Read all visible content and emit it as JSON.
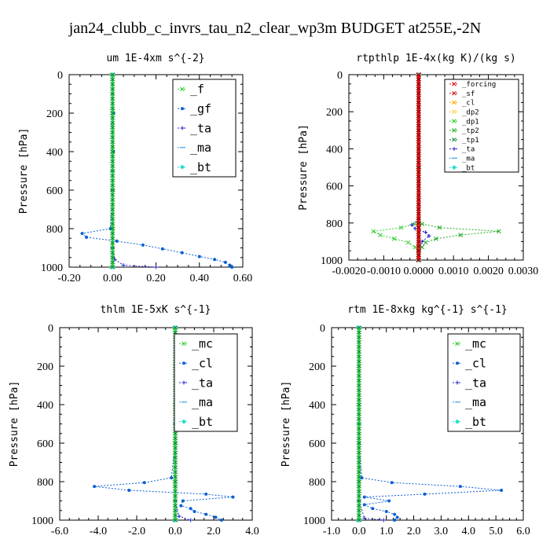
{
  "figure": {
    "title": "jan24_clubb_c_invrs_tau_n2_clear_wp3m  BUDGET at255E,-2N"
  },
  "chart_data": [
    {
      "type": "line",
      "title": "um  1E-4xm s^{-2}",
      "ylabel": "Pressure [hPa]",
      "xlim": [
        -0.2,
        0.6
      ],
      "ylim": [
        1000,
        0
      ],
      "xticks": [
        "-0.20",
        "0.00",
        "0.20",
        "0.40",
        "0.60"
      ],
      "yticks": [
        "0",
        "200",
        "400",
        "600",
        "800",
        "1000"
      ],
      "legend_font": 15,
      "legend": [
        "_f",
        "_gf",
        "_ta",
        "_ma",
        "_bt"
      ],
      "series": [
        {
          "name": "_f",
          "color": "#33cc33",
          "marker": "x",
          "x": [
            0,
            0,
            0,
            0,
            0,
            0
          ],
          "y": [
            0,
            200,
            400,
            600,
            800,
            1000
          ]
        },
        {
          "name": "_gf",
          "color": "#0a5fd6",
          "marker": "dot",
          "x": [
            0.0,
            0.0,
            0.005,
            0.0,
            0.004,
            0.0,
            -0.01,
            -0.14,
            -0.12,
            0.02,
            0.14,
            0.23,
            0.32,
            0.4,
            0.47,
            0.52,
            0.54,
            0.55
          ],
          "y": [
            0,
            100,
            200,
            260,
            400,
            600,
            800,
            825,
            845,
            865,
            885,
            905,
            925,
            945,
            960,
            975,
            990,
            1000
          ]
        },
        {
          "name": "_ta",
          "color": "#2222cc",
          "marker": "plus",
          "x": [
            0,
            0,
            0,
            0.01,
            0.05,
            0.2
          ],
          "y": [
            0,
            600,
            900,
            960,
            990,
            1000
          ]
        },
        {
          "name": "_ma",
          "color": "#2299ee",
          "marker": "dash",
          "x": [
            0,
            0,
            0
          ],
          "y": [
            0,
            500,
            1000
          ]
        },
        {
          "name": "_bt",
          "color": "#22ddcc",
          "marker": "diamond",
          "x": [
            0,
            0,
            0
          ],
          "y": [
            0,
            500,
            1000
          ]
        }
      ]
    },
    {
      "type": "line",
      "title": "rtpthlp  1E-4x(kg K)/(kg s)",
      "ylabel": "Pressure [hPa]",
      "xlim": [
        -0.002,
        0.003
      ],
      "ylim": [
        1000,
        0
      ],
      "xticks": [
        "-0.0020",
        "-0.0010",
        "0.0000",
        "0.0010",
        "0.0020",
        "0.0030"
      ],
      "yticks": [
        "0",
        "200",
        "400",
        "600",
        "800",
        "1000"
      ],
      "legend_font": 9,
      "legend": [
        "_forcing",
        "_sf",
        "_cl",
        "_dp2",
        "_dp1",
        "_tp2",
        "_tp1",
        "_ta",
        "_ma",
        "_bt"
      ],
      "series": [
        {
          "name": "_dp1",
          "color": "#33cc33",
          "marker": "x",
          "x": [
            0,
            0,
            -0.0001,
            -0.0005,
            -0.0013,
            -0.0011,
            -0.0007,
            -0.0003,
            -0.0001,
            0,
            0
          ],
          "y": [
            0,
            790,
            805,
            825,
            845,
            865,
            885,
            905,
            930,
            970,
            1000
          ]
        },
        {
          "name": "_tp2",
          "color": "#22aa22",
          "marker": "x",
          "x": [
            0,
            0,
            0.0001,
            0.0006,
            0.0023,
            0.0012,
            0.0005,
            0.0002,
            0.0001,
            0,
            0
          ],
          "y": [
            0,
            790,
            805,
            825,
            845,
            865,
            885,
            905,
            930,
            970,
            1000
          ]
        },
        {
          "name": "_ta",
          "color": "#2222cc",
          "marker": "plus",
          "x": [
            0,
            0,
            -0.0002,
            -0.0001,
            0.0002,
            0.0003,
            0.0001,
            0,
            0
          ],
          "y": [
            0,
            780,
            810,
            830,
            850,
            870,
            900,
            950,
            1000
          ]
        },
        {
          "name": "_ma",
          "color": "#2299ee",
          "marker": "dash",
          "x": [
            0,
            0,
            0
          ],
          "y": [
            0,
            500,
            1000
          ]
        },
        {
          "name": "_bt",
          "color": "#22ddcc",
          "marker": "diamond",
          "x": [
            0,
            0,
            0
          ],
          "y": [
            0,
            500,
            1000
          ]
        },
        {
          "name": "_sf",
          "color": "#cc0000",
          "marker": "x",
          "x": [
            0,
            0,
            0
          ],
          "y": [
            0,
            500,
            1000
          ]
        },
        {
          "name": "_forcing",
          "color": "#dd1111",
          "marker": "x",
          "x": [
            0,
            0,
            0
          ],
          "y": [
            0,
            500,
            1000
          ]
        }
      ]
    },
    {
      "type": "line",
      "title": "thlm  1E-5xK s^{-1}",
      "ylabel": "Pressure [hPa]",
      "xlim": [
        -6,
        4
      ],
      "ylim": [
        1000,
        0
      ],
      "xticks": [
        "-6.0",
        "-4.0",
        "-2.0",
        "0.0",
        "2.0",
        "4.0"
      ],
      "yticks": [
        "0",
        "200",
        "400",
        "600",
        "800",
        "1000"
      ],
      "legend_font": 15,
      "legend": [
        "_mc",
        "_cl",
        "_ta",
        "_ma",
        "_bt"
      ],
      "series": [
        {
          "name": "_mc",
          "color": "#33cc33",
          "marker": "x",
          "x": [
            0,
            0,
            0,
            0,
            0,
            0
          ],
          "y": [
            0,
            200,
            400,
            600,
            800,
            1000
          ]
        },
        {
          "name": "_cl",
          "color": "#0a5fd6",
          "marker": "dot",
          "x": [
            0,
            0,
            -0.2,
            -1.6,
            -4.2,
            -2.4,
            1.6,
            3.0,
            0.4,
            0.3,
            0.8,
            1.0,
            1.6,
            2.1,
            2.4
          ],
          "y": [
            0,
            600,
            780,
            805,
            825,
            845,
            865,
            880,
            900,
            925,
            940,
            955,
            970,
            985,
            1000
          ]
        },
        {
          "name": "_ta",
          "color": "#2222cc",
          "marker": "plus",
          "x": [
            0,
            0,
            0.2,
            0.8
          ],
          "y": [
            0,
            900,
            980,
            1000
          ]
        },
        {
          "name": "_ma",
          "color": "#2299ee",
          "marker": "dash",
          "x": [
            0,
            0,
            0
          ],
          "y": [
            0,
            500,
            1000
          ]
        },
        {
          "name": "_bt",
          "color": "#22ddcc",
          "marker": "diamond",
          "x": [
            0,
            0,
            0
          ],
          "y": [
            0,
            500,
            1000
          ]
        }
      ]
    },
    {
      "type": "line",
      "title": "rtm  1E-8xkg kg^{-1} s^{-1}",
      "ylabel": "Pressure [hPa]",
      "xlim": [
        -1,
        6
      ],
      "ylim": [
        1000,
        0
      ],
      "xticks": [
        "-1.0",
        "0.0",
        "1.0",
        "2.0",
        "3.0",
        "4.0",
        "5.0",
        "6.0"
      ],
      "yticks": [
        "0",
        "200",
        "400",
        "600",
        "800",
        "1000"
      ],
      "legend_font": 15,
      "legend": [
        "_mc",
        "_cl",
        "_ta",
        "_ma",
        "_bt"
      ],
      "series": [
        {
          "name": "_mc",
          "color": "#33cc33",
          "marker": "x",
          "x": [
            0,
            0,
            0,
            0,
            0,
            0
          ],
          "y": [
            0,
            200,
            400,
            600,
            800,
            1000
          ]
        },
        {
          "name": "_cl",
          "color": "#0a5fd6",
          "marker": "dot",
          "x": [
            0,
            0,
            0.1,
            1.2,
            3.7,
            5.2,
            2.4,
            0.2,
            1.1,
            0.2,
            0.5,
            1.0,
            1.3,
            1.4,
            1.3
          ],
          "y": [
            0,
            600,
            780,
            805,
            825,
            845,
            865,
            880,
            900,
            920,
            940,
            955,
            970,
            985,
            1000
          ]
        },
        {
          "name": "_ta",
          "color": "#2222cc",
          "marker": "plus",
          "x": [
            0,
            0,
            0.2,
            0.9
          ],
          "y": [
            0,
            900,
            990,
            1000
          ]
        },
        {
          "name": "_ma",
          "color": "#2299ee",
          "marker": "dash",
          "x": [
            0,
            0,
            0
          ],
          "y": [
            0,
            500,
            1000
          ]
        },
        {
          "name": "_bt",
          "color": "#22ddcc",
          "marker": "diamond",
          "x": [
            0,
            0,
            0
          ],
          "y": [
            0,
            500,
            1000
          ]
        }
      ]
    }
  ]
}
